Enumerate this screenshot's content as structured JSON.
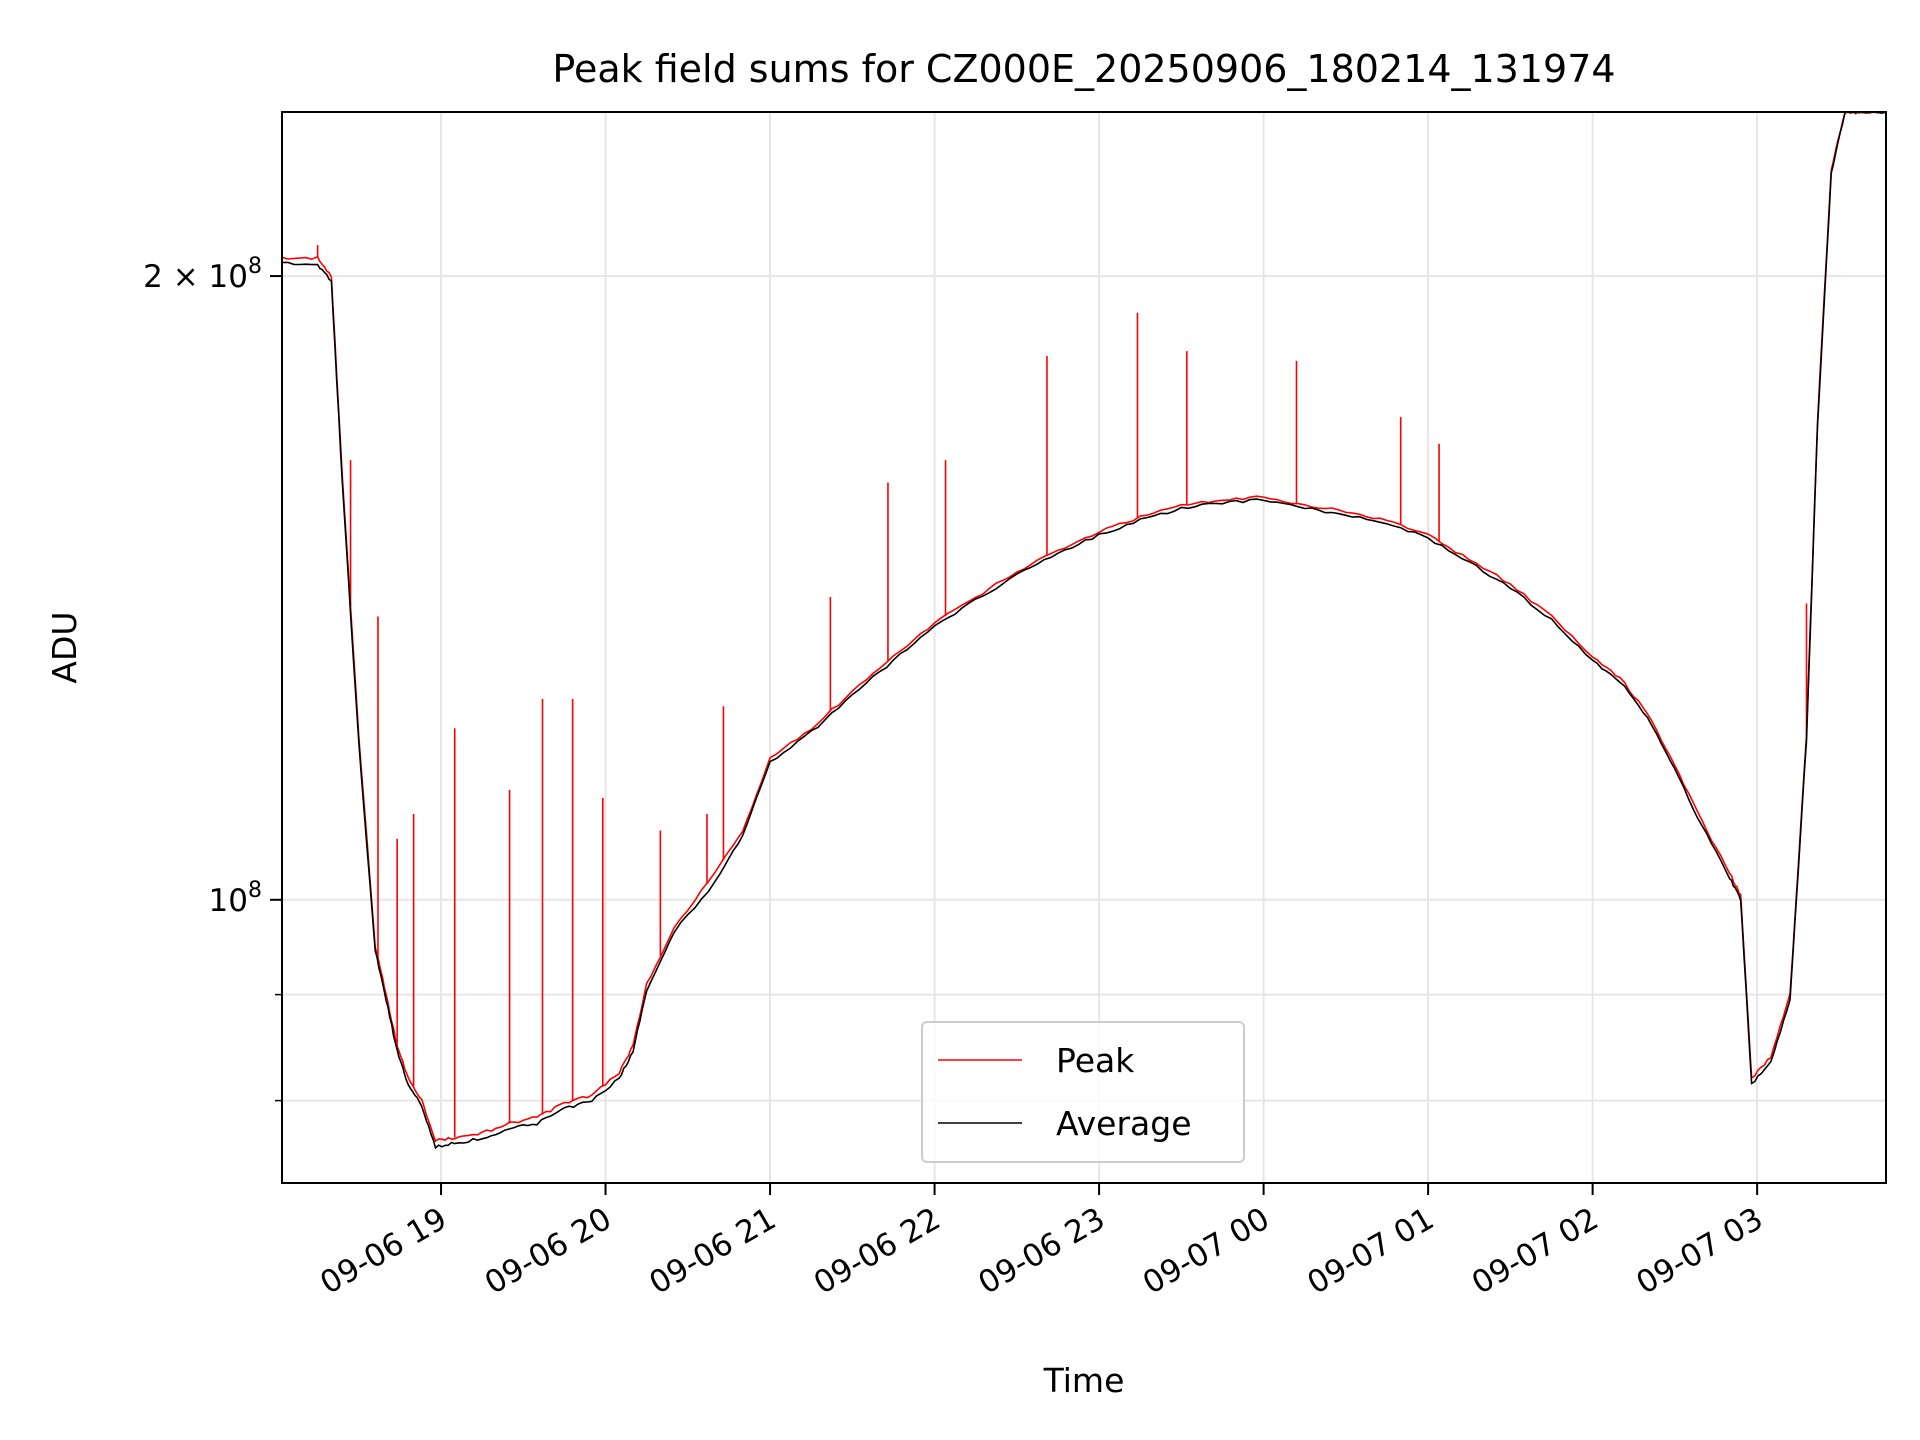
{
  "chart_data": {
    "type": "line",
    "title": "Peak field sums for CZ000E_20250906_180214_131974",
    "xlabel": "Time",
    "ylabel": "ADU",
    "yscale": "log",
    "xlim": [
      "2025-09-06 18:02",
      "2025-09-07 03:47"
    ],
    "ylim": [
      73000000,
      240000000
    ],
    "grid": true,
    "legend_position": "lower center",
    "x_ticks": [
      "09-06 19",
      "09-06 20",
      "09-06 21",
      "09-06 22",
      "09-06 23",
      "09-07 00",
      "09-07 01",
      "09-07 02",
      "09-07 03"
    ],
    "y_ticks": [
      {
        "value": 100000000,
        "base": "10",
        "exp": "8",
        "mantissa": ""
      },
      {
        "value": 200000000,
        "base": "10",
        "exp": "8",
        "mantissa": "2 × "
      }
    ],
    "y_minor_ticks": [
      80000000,
      90000000
    ],
    "series": [
      {
        "name": "Peak",
        "color": "#ff0000",
        "x": [
          "2025-09-06 18:02",
          "2025-09-06 18:15",
          "2025-09-06 18:20",
          "2025-09-06 18:24",
          "2025-09-06 18:30",
          "2025-09-06 18:36",
          "2025-09-06 18:40",
          "2025-09-06 18:44",
          "2025-09-06 18:48",
          "2025-09-06 18:53",
          "2025-09-06 18:58",
          "2025-09-06 19:05",
          "2025-09-06 19:15",
          "2025-09-06 19:25",
          "2025-09-06 19:35",
          "2025-09-06 19:45",
          "2025-09-06 19:55",
          "2025-09-06 20:05",
          "2025-09-06 20:10",
          "2025-09-06 20:15",
          "2025-09-06 20:25",
          "2025-09-06 20:40",
          "2025-09-06 20:50",
          "2025-09-06 21:00",
          "2025-09-06 21:15",
          "2025-09-06 21:30",
          "2025-09-06 21:45",
          "2025-09-06 22:00",
          "2025-09-06 22:15",
          "2025-09-06 22:30",
          "2025-09-06 22:45",
          "2025-09-06 23:00",
          "2025-09-06 23:15",
          "2025-09-06 23:30",
          "2025-09-06 23:45",
          "2025-09-07 00:00",
          "2025-09-07 00:15",
          "2025-09-07 00:30",
          "2025-09-07 00:45",
          "2025-09-07 01:00",
          "2025-09-07 01:15",
          "2025-09-07 01:30",
          "2025-09-07 01:45",
          "2025-09-07 02:00",
          "2025-09-07 02:10",
          "2025-09-07 02:20",
          "2025-09-07 02:30",
          "2025-09-07 02:40",
          "2025-09-07 02:50",
          "2025-09-07 02:54",
          "2025-09-07 02:58",
          "2025-09-07 03:05",
          "2025-09-07 03:12",
          "2025-09-07 03:18",
          "2025-09-07 03:22",
          "2025-09-07 03:27",
          "2025-09-07 03:32",
          "2025-09-07 03:38",
          "2025-09-07 03:47"
        ],
        "y": [
          204000000,
          204000000,
          200000000,
          160000000,
          120000000,
          95000000,
          90000000,
          85000000,
          82000000,
          80000000,
          76500000,
          76800000,
          77200000,
          78000000,
          78500000,
          79800000,
          80500000,
          82500000,
          85000000,
          91000000,
          97000000,
          103000000,
          108000000,
          117000000,
          121000000,
          126000000,
          131000000,
          136000000,
          140000000,
          144000000,
          147500000,
          150500000,
          153000000,
          155000000,
          156000000,
          156500000,
          155000000,
          154000000,
          152500000,
          150000000,
          146000000,
          142000000,
          137000000,
          131000000,
          128000000,
          123000000,
          116000000,
          109000000,
          103000000,
          100500000,
          82000000,
          84000000,
          90000000,
          120000000,
          170000000,
          225000000,
          240000000,
          240000000,
          240000000
        ],
        "spikes": [
          {
            "x": "2025-09-06 18:15",
            "y": 207000000
          },
          {
            "x": "2025-09-06 18:27",
            "y": 163000000
          },
          {
            "x": "2025-09-06 18:37",
            "y": 137000000
          },
          {
            "x": "2025-09-06 18:44",
            "y": 107000000
          },
          {
            "x": "2025-09-06 18:50",
            "y": 110000000
          },
          {
            "x": "2025-09-06 19:05",
            "y": 121000000
          },
          {
            "x": "2025-09-06 19:25",
            "y": 113000000
          },
          {
            "x": "2025-09-06 19:37",
            "y": 125000000
          },
          {
            "x": "2025-09-06 19:48",
            "y": 125000000
          },
          {
            "x": "2025-09-06 19:59",
            "y": 112000000
          },
          {
            "x": "2025-09-06 20:20",
            "y": 108000000
          },
          {
            "x": "2025-09-06 20:37",
            "y": 110000000
          },
          {
            "x": "2025-09-06 20:43",
            "y": 124000000
          },
          {
            "x": "2025-09-06 21:22",
            "y": 140000000
          },
          {
            "x": "2025-09-06 21:43",
            "y": 159000000
          },
          {
            "x": "2025-09-06 22:04",
            "y": 163000000
          },
          {
            "x": "2025-09-06 22:41",
            "y": 183000000
          },
          {
            "x": "2025-09-06 23:14",
            "y": 192000000
          },
          {
            "x": "2025-09-06 23:32",
            "y": 184000000
          },
          {
            "x": "2025-09-07 00:12",
            "y": 182000000
          },
          {
            "x": "2025-09-07 00:50",
            "y": 171000000
          },
          {
            "x": "2025-09-07 01:04",
            "y": 166000000
          },
          {
            "x": "2025-09-07 03:18",
            "y": 139000000
          }
        ]
      },
      {
        "name": "Average",
        "color": "#000000",
        "x": [
          "2025-09-06 18:02",
          "2025-09-06 18:15",
          "2025-09-06 18:20",
          "2025-09-06 18:24",
          "2025-09-06 18:30",
          "2025-09-06 18:36",
          "2025-09-06 18:40",
          "2025-09-06 18:44",
          "2025-09-06 18:48",
          "2025-09-06 18:53",
          "2025-09-06 18:58",
          "2025-09-06 19:05",
          "2025-09-06 19:15",
          "2025-09-06 19:25",
          "2025-09-06 19:35",
          "2025-09-06 19:45",
          "2025-09-06 19:55",
          "2025-09-06 20:05",
          "2025-09-06 20:10",
          "2025-09-06 20:15",
          "2025-09-06 20:25",
          "2025-09-06 20:40",
          "2025-09-06 20:50",
          "2025-09-06 21:00",
          "2025-09-06 21:15",
          "2025-09-06 21:30",
          "2025-09-06 21:45",
          "2025-09-06 22:00",
          "2025-09-06 22:15",
          "2025-09-06 22:30",
          "2025-09-06 22:45",
          "2025-09-06 23:00",
          "2025-09-06 23:15",
          "2025-09-06 23:30",
          "2025-09-06 23:45",
          "2025-09-07 00:00",
          "2025-09-07 00:15",
          "2025-09-07 00:30",
          "2025-09-07 00:45",
          "2025-09-07 01:00",
          "2025-09-07 01:15",
          "2025-09-07 01:30",
          "2025-09-07 01:45",
          "2025-09-07 02:00",
          "2025-09-07 02:10",
          "2025-09-07 02:20",
          "2025-09-07 02:30",
          "2025-09-07 02:40",
          "2025-09-07 02:50",
          "2025-09-07 02:54",
          "2025-09-07 02:58",
          "2025-09-07 03:05",
          "2025-09-07 03:12",
          "2025-09-07 03:18",
          "2025-09-07 03:22",
          "2025-09-07 03:27",
          "2025-09-07 03:32",
          "2025-09-07 03:38",
          "2025-09-07 03:47"
        ],
        "y": [
          203000000,
          202500000,
          199000000,
          159000000,
          119000000,
          94500000,
          89500000,
          84500000,
          81500000,
          79500000,
          76000000,
          76300000,
          76700000,
          77500000,
          78000000,
          79300000,
          80000000,
          82000000,
          84500000,
          90500000,
          96500000,
          102000000,
          107500000,
          116500000,
          120500000,
          125500000,
          130500000,
          135500000,
          139500000,
          143500000,
          147000000,
          150000000,
          152500000,
          154500000,
          155500000,
          156000000,
          154500000,
          153500000,
          152000000,
          149500000,
          145500000,
          141500000,
          136500000,
          130500000,
          127500000,
          122500000,
          115500000,
          108500000,
          102500000,
          100000000,
          81500000,
          83500000,
          89500000,
          119500000,
          169000000,
          224000000,
          240000000,
          240000000,
          240000000
        ]
      }
    ]
  }
}
